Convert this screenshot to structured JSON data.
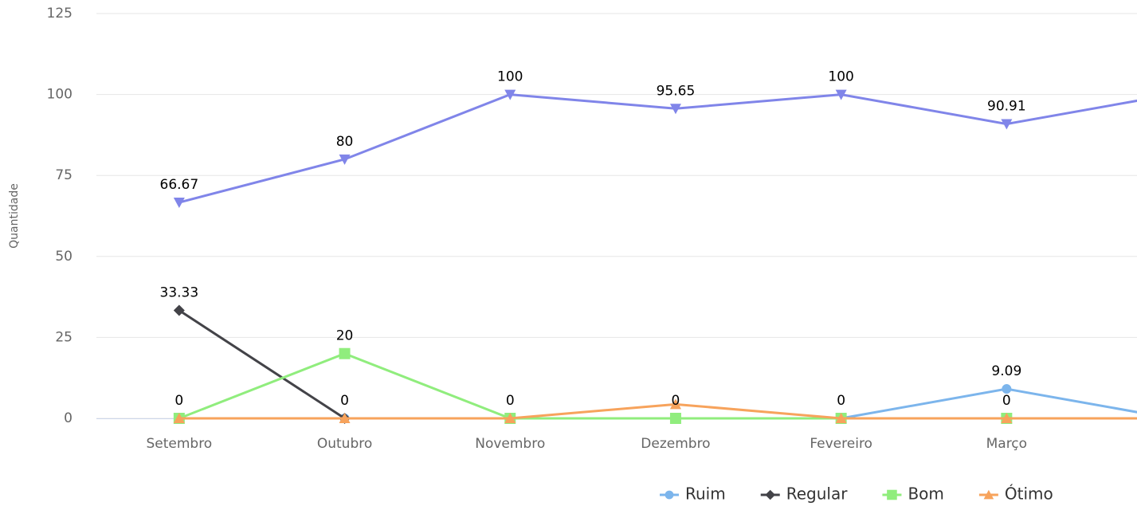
{
  "chart_data": {
    "type": "line",
    "y_axis_label": "Quantidade",
    "categories": [
      "Setembro",
      "Outubro",
      "Novembro",
      "Dezembro",
      "Fevereiro",
      "Março",
      null
    ],
    "ylim": [
      0,
      125
    ],
    "yticks": [
      0,
      25,
      50,
      75,
      100,
      125
    ],
    "grid": true,
    "legend": "bottom-right",
    "series": [
      {
        "name": "Ruim",
        "color": "#7cb5ec",
        "marker": "circle",
        "values": [
          0,
          0,
          0,
          0,
          0,
          9.09,
          0
        ],
        "value_labels": [
          null,
          null,
          null,
          null,
          null,
          "9.09",
          null
        ]
      },
      {
        "name": "Regular",
        "color": "#434348",
        "marker": "diamond",
        "values": [
          33.33,
          0,
          0,
          0,
          0,
          0,
          0
        ],
        "value_labels": [
          "33.33",
          "0",
          null,
          null,
          null,
          null,
          null
        ]
      },
      {
        "name": "Bom",
        "color": "#90ed7d",
        "marker": "square",
        "values": [
          0,
          20,
          0,
          0,
          0,
          0,
          0
        ],
        "value_labels": [
          "0",
          "20",
          "0",
          "0",
          "0",
          "0",
          null
        ]
      },
      {
        "name": "Ótimo",
        "color": "#f7a35c",
        "marker": "triangle",
        "values": [
          0,
          0,
          0,
          4.35,
          0,
          0,
          0
        ],
        "value_labels": [
          null,
          null,
          null,
          null,
          null,
          null,
          null
        ]
      },
      {
        "color": "#8085e9",
        "marker": "triangle-down",
        "values": [
          66.67,
          80,
          100,
          95.65,
          100,
          90.91,
          100
        ],
        "value_labels": [
          "66.67",
          "80",
          "100",
          "95.65",
          "100",
          "90.91",
          null
        ]
      }
    ]
  }
}
